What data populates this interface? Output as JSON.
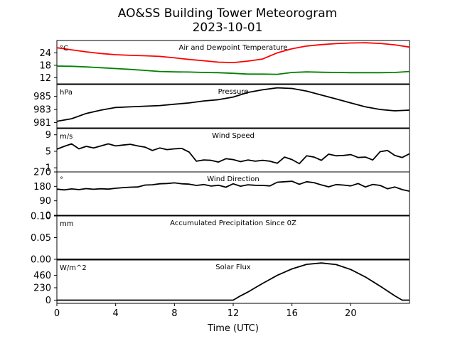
{
  "title_line1": "AO&SS Building Tower Meteorogram",
  "title_line2": "2023-10-01",
  "xlabel": "Time (UTC)",
  "x_ticks": [
    0,
    4,
    8,
    12,
    16,
    20
  ],
  "xlim": [
    0,
    24
  ],
  "chart_data": [
    {
      "type": "line",
      "title": "Air and Dewpoint Temperature",
      "unit": "°C",
      "ylim": [
        9,
        30
      ],
      "yticks": [
        12,
        18,
        24
      ],
      "series": [
        {
          "color": "#ff0000",
          "x": [
            0,
            1,
            2,
            3,
            4,
            5,
            6,
            7,
            8,
            9,
            10,
            11,
            12,
            13,
            14,
            15,
            16,
            17,
            18,
            19,
            20,
            21,
            22,
            23,
            24
          ],
          "values": [
            26.5,
            25.5,
            24.5,
            23.7,
            23.1,
            22.8,
            22.6,
            22.3,
            21.6,
            20.8,
            20.2,
            19.5,
            19.3,
            20.0,
            21.0,
            24.0,
            26.0,
            27.3,
            28.0,
            28.5,
            28.8,
            28.9,
            28.6,
            27.9,
            26.8
          ]
        },
        {
          "color": "#008000",
          "x": [
            0,
            1,
            2,
            3,
            4,
            5,
            6,
            7,
            8,
            9,
            10,
            11,
            12,
            13,
            14,
            15,
            16,
            17,
            18,
            19,
            20,
            21,
            22,
            23,
            24
          ],
          "values": [
            17.6,
            17.5,
            17.2,
            16.8,
            16.4,
            16.0,
            15.5,
            15.0,
            14.8,
            14.7,
            14.5,
            14.4,
            14.1,
            13.7,
            13.7,
            13.6,
            14.5,
            14.8,
            14.6,
            14.5,
            14.4,
            14.4,
            14.4,
            14.5,
            15.0
          ]
        }
      ]
    },
    {
      "type": "line",
      "title": "Pressure",
      "unit": "hPa",
      "ylim": [
        980.2,
        986.8
      ],
      "yticks": [
        981,
        983,
        985
      ],
      "series": [
        {
          "color": "#000000",
          "x": [
            0,
            1,
            2,
            3,
            4,
            5,
            6,
            7,
            8,
            9,
            10,
            11,
            12,
            13,
            14,
            15,
            16,
            17,
            18,
            19,
            20,
            21,
            22,
            23,
            24
          ],
          "values": [
            981.2,
            981.6,
            982.4,
            982.9,
            983.3,
            983.4,
            983.5,
            983.6,
            983.8,
            984.0,
            984.3,
            984.5,
            984.9,
            985.6,
            986.0,
            986.3,
            986.2,
            985.8,
            985.2,
            984.6,
            984.0,
            983.4,
            983.0,
            982.8,
            982.9
          ]
        }
      ]
    },
    {
      "type": "line",
      "title": "Wind Speed",
      "unit": "m/s",
      "ylim": [
        0,
        10.5
      ],
      "yticks": [
        1,
        5,
        9
      ],
      "series": [
        {
          "color": "#000000",
          "x": [
            0,
            0.5,
            1,
            1.5,
            2,
            2.5,
            3,
            3.5,
            4,
            4.5,
            5,
            5.5,
            6,
            6.5,
            7,
            7.5,
            8,
            8.5,
            9,
            9.5,
            10,
            10.5,
            11,
            11.5,
            12,
            12.5,
            13,
            13.5,
            14,
            14.5,
            15,
            15.5,
            16,
            16.5,
            17,
            17.5,
            18,
            18.5,
            19,
            19.5,
            20,
            20.5,
            21,
            21.5,
            22,
            22.5,
            23,
            23.5,
            24
          ],
          "values": [
            5.5,
            6.2,
            6.8,
            5.6,
            6.2,
            5.8,
            6.3,
            6.8,
            6.3,
            6.5,
            6.7,
            6.3,
            6.0,
            5.2,
            5.8,
            5.4,
            5.6,
            5.7,
            4.8,
            2.6,
            2.9,
            2.8,
            2.4,
            3.2,
            3.0,
            2.5,
            2.9,
            2.6,
            2.8,
            2.6,
            2.1,
            3.6,
            3.0,
            2.0,
            3.9,
            3.6,
            2.8,
            4.3,
            3.9,
            4.0,
            4.2,
            3.5,
            3.6,
            2.9,
            4.9,
            5.2,
            4.0,
            3.5,
            4.4
          ]
        }
      ]
    },
    {
      "type": "line",
      "title": "Wind Direction",
      "unit": "°",
      "ylim": [
        0,
        270
      ],
      "yticks": [
        0,
        90,
        180,
        270
      ],
      "series": [
        {
          "color": "#000000",
          "x": [
            0,
            0.5,
            1,
            1.5,
            2,
            2.5,
            3,
            3.5,
            4,
            4.5,
            5,
            5.5,
            6,
            6.5,
            7,
            7.5,
            8,
            8.5,
            9,
            9.5,
            10,
            10.5,
            11,
            11.5,
            12,
            12.5,
            13,
            13.5,
            14,
            14.5,
            15,
            15.5,
            16,
            16.5,
            17,
            17.5,
            18,
            18.5,
            19,
            19.5,
            20,
            20.5,
            21,
            21.5,
            22,
            22.5,
            23,
            23.5,
            24
          ],
          "values": [
            163,
            158,
            164,
            160,
            166,
            162,
            165,
            163,
            168,
            172,
            175,
            176,
            188,
            190,
            196,
            198,
            202,
            196,
            194,
            186,
            191,
            182,
            187,
            175,
            196,
            181,
            190,
            187,
            186,
            183,
            206,
            209,
            212,
            193,
            209,
            203,
            189,
            177,
            191,
            188,
            183,
            198,
            176,
            192,
            186,
            165,
            176,
            160,
            150
          ]
        }
      ]
    },
    {
      "type": "line",
      "title": "Accumulated Precipitation Since 0Z",
      "unit": "mm",
      "ylim": [
        0,
        0.1
      ],
      "yticks": [
        0.0,
        0.05,
        0.1
      ],
      "ytick_labels": [
        "0.00",
        "0.05",
        "0.10"
      ],
      "series": [
        {
          "color": "#000000",
          "x": [
            0,
            24
          ],
          "values": [
            0.0,
            0.0
          ]
        }
      ]
    },
    {
      "type": "line",
      "title": "Solar Flux",
      "unit": "W/m^2",
      "ylim": [
        -60,
        745
      ],
      "yticks": [
        0,
        230,
        460
      ],
      "series": [
        {
          "color": "#000000",
          "x": [
            0,
            1,
            2,
            3,
            4,
            5,
            6,
            7,
            8,
            9,
            10,
            11,
            12,
            12.5,
            13,
            13.5,
            14,
            15,
            16,
            17,
            18,
            19,
            20,
            21,
            22,
            23,
            23.5,
            24
          ],
          "values": [
            0,
            0,
            0,
            0,
            0,
            0,
            0,
            0,
            0,
            0,
            0,
            0,
            0,
            80,
            150,
            230,
            310,
            460,
            580,
            665,
            690,
            660,
            570,
            430,
            260,
            80,
            0,
            0
          ]
        }
      ]
    }
  ]
}
